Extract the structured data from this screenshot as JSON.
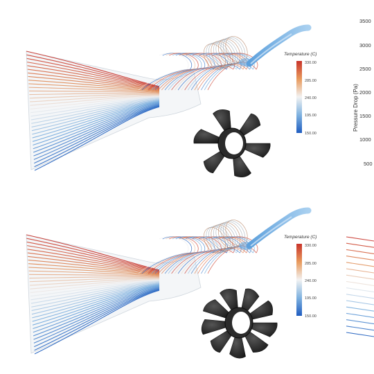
{
  "panels": [
    {
      "id": "top",
      "legend": {
        "title": "Temperature (C)",
        "ticks": [
          "330.00",
          "285.00",
          "240.00",
          "195.00",
          "150.00"
        ]
      },
      "impeller": {
        "blade_count": 6
      }
    },
    {
      "id": "bottom",
      "legend": {
        "title": "Temperature (C)",
        "ticks": [
          "330.00",
          "285.00",
          "240.00",
          "195.00",
          "150.00"
        ]
      },
      "impeller": {
        "blade_count": 9
      }
    }
  ],
  "side_chart": {
    "ylabel": "Pressure Drop (Pa)",
    "yticks": [
      "3500",
      "3000",
      "2500",
      "2000",
      "1500",
      "1000",
      "500"
    ]
  },
  "colors": {
    "hot": "#c8332a",
    "warm": "#e08a52",
    "mid": "#eeeeee",
    "cool": "#6fa8dc",
    "cold": "#1f5fbf",
    "impeller": "#2b2b2b"
  }
}
